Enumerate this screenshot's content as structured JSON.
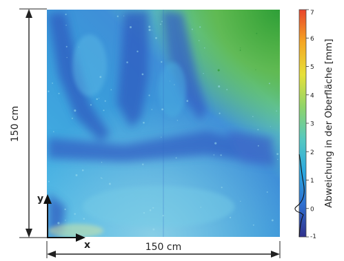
{
  "chart_data": {
    "type": "heatmap",
    "title": "",
    "dimension_labels": {
      "height": "150 cm",
      "width": "150 cm"
    },
    "axes": {
      "x_label": "x",
      "y_label": "y"
    },
    "colorbar": {
      "label": "Abweichung in der Oberfläche [mm]",
      "range": [
        -1,
        7
      ],
      "ticks": [
        "-1",
        "0",
        "1",
        "2",
        "3",
        "4",
        "5",
        "6",
        "7"
      ],
      "colors": [
        "#30308c",
        "#2f6fd0",
        "#2aa8e0",
        "#55c8c0",
        "#8fd46a",
        "#e6e03a",
        "#f5a623",
        "#e8442c"
      ]
    },
    "field_colors": {
      "low": "#2d5fc0",
      "mid": "#39a9e0",
      "high": "#3cae3c"
    }
  }
}
